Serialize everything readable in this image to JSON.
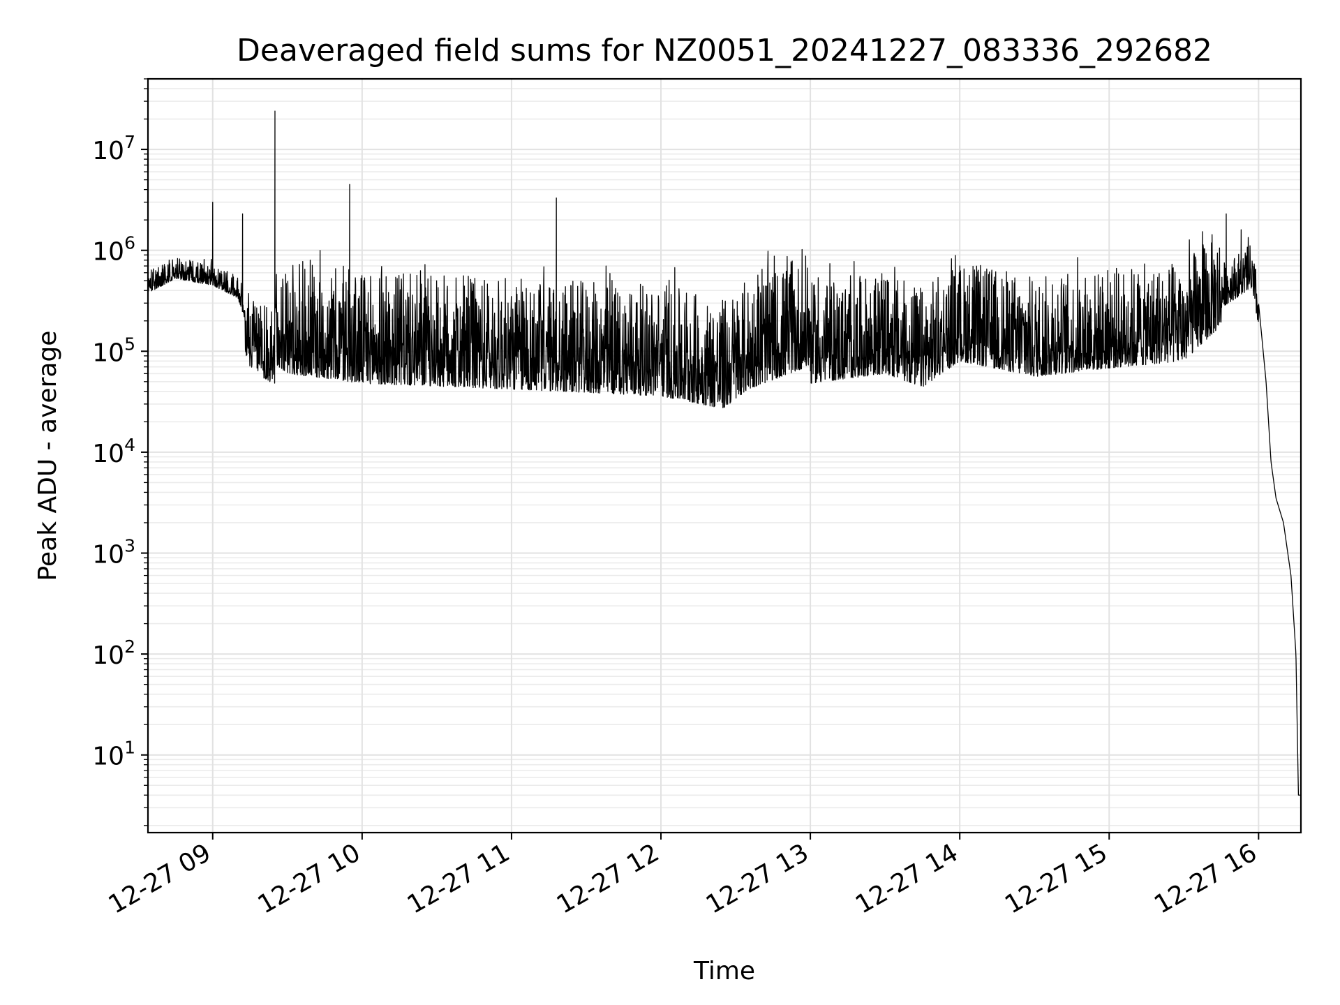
{
  "chart_data": {
    "type": "line",
    "title": "Deaveraged field sums for NZ0051_20241227_083336_292682",
    "xlabel": "Time",
    "ylabel": "Peak ADU - average",
    "yscale": "log",
    "ylim": [
      1.7,
      50000000
    ],
    "xlim": [
      "2024-12-27 08:34",
      "2024-12-27 16:17"
    ],
    "x_ticks": [
      "12-27 09",
      "12-27 10",
      "12-27 11",
      "12-27 12",
      "12-27 13",
      "12-27 14",
      "12-27 15",
      "12-27 16"
    ],
    "y_ticks": [
      {
        "base": "10",
        "exp": "1"
      },
      {
        "base": "10",
        "exp": "2"
      },
      {
        "base": "10",
        "exp": "3"
      },
      {
        "base": "10",
        "exp": "4"
      },
      {
        "base": "10",
        "exp": "5"
      },
      {
        "base": "10",
        "exp": "6"
      },
      {
        "base": "10",
        "exp": "7"
      }
    ],
    "grid": true,
    "line_color": "#000000",
    "series": [
      {
        "points": [
          [
            "08:34",
            500000
          ],
          [
            "08:45",
            700000
          ],
          [
            "09:00",
            600000
          ],
          [
            "09:10",
            450000
          ],
          [
            "09:15",
            200000
          ],
          [
            "09:30",
            100000
          ],
          [
            "09:45",
            90000
          ],
          [
            "10:00",
            80000
          ],
          [
            "10:30",
            75000
          ],
          [
            "11:00",
            70000
          ],
          [
            "11:30",
            65000
          ],
          [
            "12:00",
            60000
          ],
          [
            "12:25",
            45000
          ],
          [
            "12:35",
            70000
          ],
          [
            "13:00",
            120000
          ],
          [
            "13:30",
            150000
          ],
          [
            "13:45",
            110000
          ],
          [
            "14:00",
            200000
          ],
          [
            "14:30",
            140000
          ],
          [
            "15:00",
            170000
          ],
          [
            "15:30",
            200000
          ],
          [
            "15:45",
            450000
          ],
          [
            "15:57",
            700000
          ],
          [
            "16:00",
            300000
          ],
          [
            "16:03",
            50000
          ],
          [
            "16:05",
            8000
          ],
          [
            "16:07",
            3500
          ],
          [
            "16:10",
            2000
          ],
          [
            "16:13",
            600
          ],
          [
            "16:15",
            100
          ],
          [
            "16:16",
            4
          ],
          [
            "16:17",
            4
          ]
        ],
        "noise": [
          {
            "from": "08:34",
            "to": "09:13",
            "low": 0.75,
            "high": 1.35
          },
          {
            "from": "09:13",
            "to": "09:25",
            "low": 0.35,
            "high": 2.5
          },
          {
            "from": "09:25",
            "to": "13:00",
            "low": 0.6,
            "high": 12
          },
          {
            "from": "13:00",
            "to": "15:45",
            "low": 0.4,
            "high": 6
          },
          {
            "from": "15:45",
            "to": "16:00",
            "low": 0.6,
            "high": 2
          }
        ],
        "spikes": [
          [
            "09:00",
            3000000
          ],
          [
            "09:12",
            2300000
          ],
          [
            "09:25",
            24000000
          ],
          [
            "09:55",
            4500000
          ],
          [
            "11:18",
            3300000
          ],
          [
            "15:47",
            2300000
          ],
          [
            "15:53",
            1600000
          ]
        ]
      }
    ]
  }
}
